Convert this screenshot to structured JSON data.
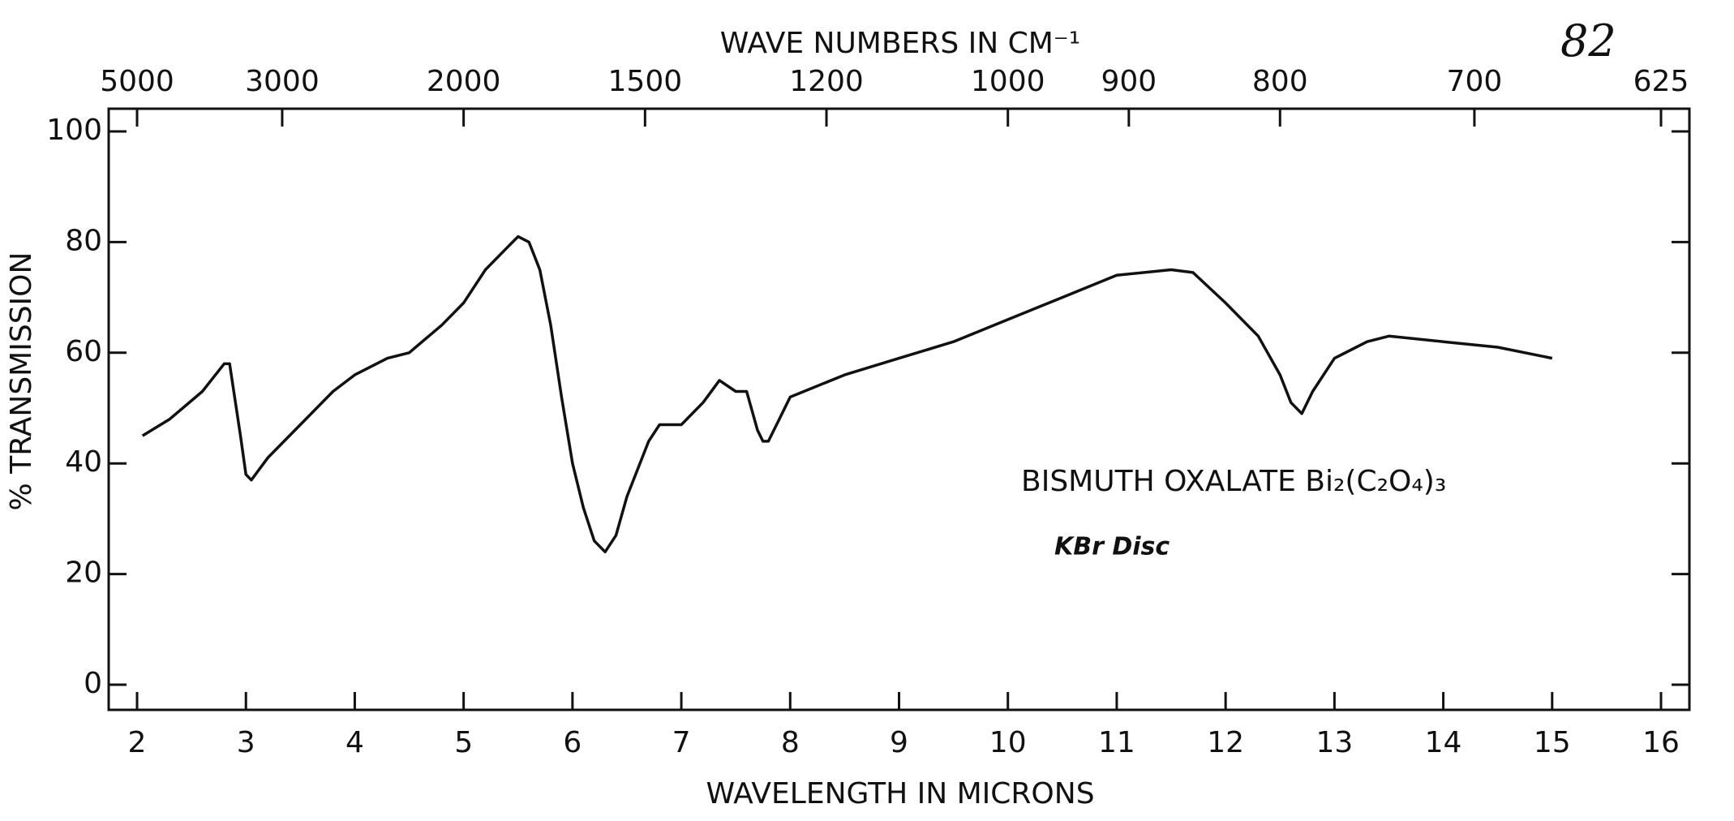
{
  "chart_data": {
    "type": "line",
    "x_label": "WAVELENGTH IN MICRONS",
    "y_label": "% TRANSMISSION",
    "x2_label": "WAVE NUMBERS IN CM⁻¹",
    "annotations": [
      "BISMUTH OXALATE Bi₂(C₂O₄)₃",
      "KBr Disc",
      "82"
    ],
    "x": [
      2.05,
      2.3,
      2.6,
      2.8,
      2.85,
      2.95,
      3.0,
      3.05,
      3.2,
      3.5,
      3.8,
      4.0,
      4.3,
      4.5,
      4.8,
      5.0,
      5.2,
      5.4,
      5.5,
      5.6,
      5.7,
      5.8,
      5.9,
      6.0,
      6.1,
      6.2,
      6.3,
      6.4,
      6.5,
      6.7,
      6.8,
      6.9,
      7.0,
      7.2,
      7.35,
      7.5,
      7.6,
      7.7,
      7.75,
      7.8,
      7.9,
      8.0,
      8.5,
      9.0,
      9.5,
      10.0,
      10.5,
      11.0,
      11.5,
      11.7,
      12.0,
      12.3,
      12.5,
      12.6,
      12.7,
      12.8,
      13.0,
      13.3,
      13.5,
      14.0,
      14.5,
      15.0
    ],
    "values": [
      45,
      48,
      53,
      58,
      58,
      45,
      38,
      37,
      41,
      47,
      53,
      56,
      59,
      60,
      65,
      69,
      75,
      79,
      81,
      80,
      75,
      65,
      52,
      40,
      32,
      26,
      24,
      27,
      34,
      44,
      47,
      47,
      47,
      51,
      55,
      53,
      53,
      46,
      44,
      44,
      48,
      52,
      56,
      59,
      62,
      66,
      70,
      74,
      75,
      74.5,
      69,
      63,
      56,
      51,
      49,
      53,
      59,
      62,
      63,
      62,
      61,
      59
    ],
    "color": "#111111",
    "xlim": [
      2,
      16
    ],
    "xticks": [
      2,
      3,
      4,
      5,
      6,
      7,
      8,
      9,
      10,
      11,
      12,
      13,
      14,
      15,
      16
    ],
    "ylim": [
      0,
      100
    ],
    "yticks": [
      0,
      20,
      40,
      60,
      80,
      100
    ],
    "x2scale": "reciprocal",
    "x2lim": [
      5000,
      625
    ],
    "x2ticks": [
      5000,
      3000,
      2000,
      1500,
      1200,
      1000,
      900,
      800,
      700,
      625
    ],
    "grid": false
  }
}
